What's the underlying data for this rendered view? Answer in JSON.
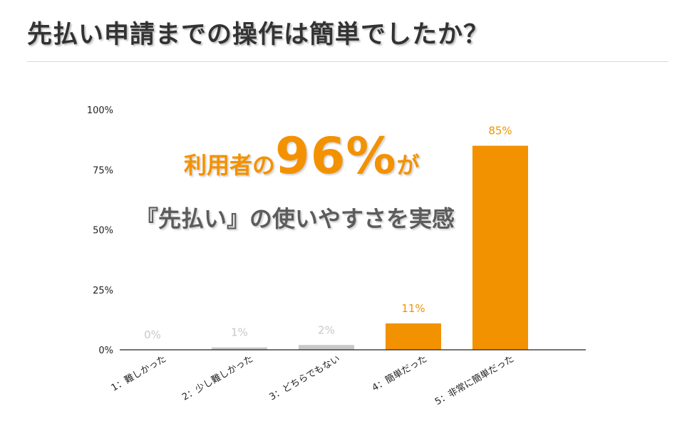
{
  "title": "先払い申請までの操作は簡単でしたか？",
  "highlight": {
    "prefix": "利用者の",
    "figure": "96%",
    "suffix": "が",
    "line2": "『先払い』の使いやすさを実感",
    "accent_color": "#f39200",
    "text_color": "#5c5c5c"
  },
  "chart_data": {
    "type": "bar",
    "categories": [
      "1：難しかった",
      "2：少し難しかった",
      "3：どちらでもない",
      "4：簡単だった",
      "5：非常に簡単だった"
    ],
    "values": [
      0,
      1,
      2,
      11,
      85
    ],
    "data_labels": [
      "0%",
      "1%",
      "2%",
      "11%",
      "85%"
    ],
    "bar_colors": [
      "#c8c8c8",
      "#c8c8c8",
      "#c8c8c8",
      "#f39200",
      "#f39200"
    ],
    "label_colors": [
      "#c8c8c8",
      "#c8c8c8",
      "#c8c8c8",
      "#f39200",
      "#f39200"
    ],
    "yticks": [
      "0%",
      "25%",
      "50%",
      "75%",
      "100%"
    ],
    "ytick_values": [
      0,
      25,
      50,
      75,
      100
    ],
    "ylim": [
      0,
      100
    ],
    "grid": false,
    "legend": "none"
  }
}
